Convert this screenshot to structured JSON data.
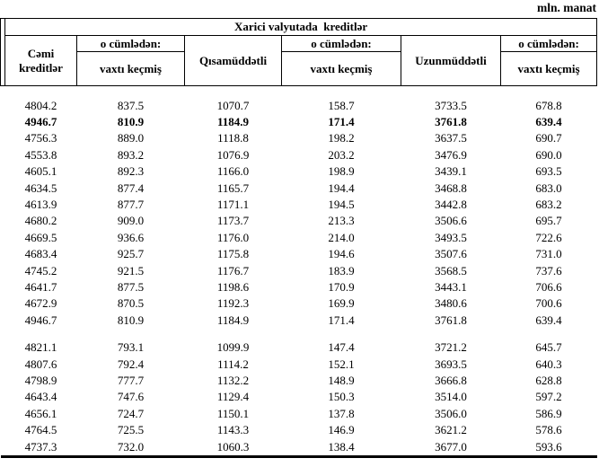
{
  "unit_label": "mln. manat",
  "table": {
    "title": "Xarici valyutada  kreditlər",
    "col_total": "Cəmi kreditlər",
    "col_short_term": "Qısamüddətli",
    "col_long_term": "Uzunmüddətli",
    "subgroup_top": "o cümlədən:",
    "subgroup_bottom": "vaxtı keçmiş",
    "columns_semantic": [
      "Cəmi kreditlər",
      "o cümlədən: vaxtı keçmiş",
      "Qısamüddətli",
      "o cümlədən: vaxtı keçmiş",
      "Uzunmüddətli",
      "o cümlədən: vaxtı keçmiş"
    ],
    "blocks": [
      {
        "rows": [
          {
            "values": [
              "4804.2",
              "837.5",
              "1070.7",
              "158.7",
              "3733.5",
              "678.8"
            ],
            "bold": false
          },
          {
            "values": [
              "4946.7",
              "810.9",
              "1184.9",
              "171.4",
              "3761.8",
              "639.4"
            ],
            "bold": true
          },
          {
            "values": [
              "4756.3",
              "889.0",
              "1118.8",
              "198.2",
              "3637.5",
              "690.7"
            ],
            "bold": false
          },
          {
            "values": [
              "4553.8",
              "893.2",
              "1076.9",
              "203.2",
              "3476.9",
              "690.0"
            ],
            "bold": false
          },
          {
            "values": [
              "4605.1",
              "892.3",
              "1166.0",
              "198.9",
              "3439.1",
              "693.5"
            ],
            "bold": false
          },
          {
            "values": [
              "4634.5",
              "877.4",
              "1165.7",
              "194.4",
              "3468.8",
              "683.0"
            ],
            "bold": false
          },
          {
            "values": [
              "4613.9",
              "877.7",
              "1171.1",
              "194.5",
              "3442.8",
              "683.2"
            ],
            "bold": false
          },
          {
            "values": [
              "4680.2",
              "909.0",
              "1173.7",
              "213.3",
              "3506.6",
              "695.7"
            ],
            "bold": false
          },
          {
            "values": [
              "4669.5",
              "936.6",
              "1176.0",
              "214.0",
              "3493.5",
              "722.6"
            ],
            "bold": false
          },
          {
            "values": [
              "4683.4",
              "925.7",
              "1175.8",
              "194.6",
              "3507.6",
              "731.0"
            ],
            "bold": false
          },
          {
            "values": [
              "4745.2",
              "921.5",
              "1176.7",
              "183.9",
              "3568.5",
              "737.6"
            ],
            "bold": false
          },
          {
            "values": [
              "4641.7",
              "877.5",
              "1198.6",
              "170.9",
              "3443.1",
              "706.6"
            ],
            "bold": false
          },
          {
            "values": [
              "4672.9",
              "870.5",
              "1192.3",
              "169.9",
              "3480.6",
              "700.6"
            ],
            "bold": false
          },
          {
            "values": [
              "4946.7",
              "810.9",
              "1184.9",
              "171.4",
              "3761.8",
              "639.4"
            ],
            "bold": false
          }
        ]
      },
      {
        "rows": [
          {
            "values": [
              "4821.1",
              "793.1",
              "1099.9",
              "147.4",
              "3721.2",
              "645.7"
            ],
            "bold": false
          },
          {
            "values": [
              "4807.6",
              "792.4",
              "1114.2",
              "152.1",
              "3693.5",
              "640.3"
            ],
            "bold": false
          },
          {
            "values": [
              "4798.9",
              "777.7",
              "1132.2",
              "148.9",
              "3666.8",
              "628.8"
            ],
            "bold": false
          },
          {
            "values": [
              "4643.4",
              "747.6",
              "1129.4",
              "150.3",
              "3514.0",
              "597.2"
            ],
            "bold": false
          },
          {
            "values": [
              "4656.1",
              "724.7",
              "1150.1",
              "137.8",
              "3506.0",
              "586.9"
            ],
            "bold": false
          },
          {
            "values": [
              "4764.5",
              "725.5",
              "1143.3",
              "146.9",
              "3621.2",
              "578.6"
            ],
            "bold": false
          },
          {
            "values": [
              "4737.3",
              "732.0",
              "1060.3",
              "138.4",
              "3677.0",
              "593.6"
            ],
            "bold": false
          }
        ]
      }
    ]
  }
}
